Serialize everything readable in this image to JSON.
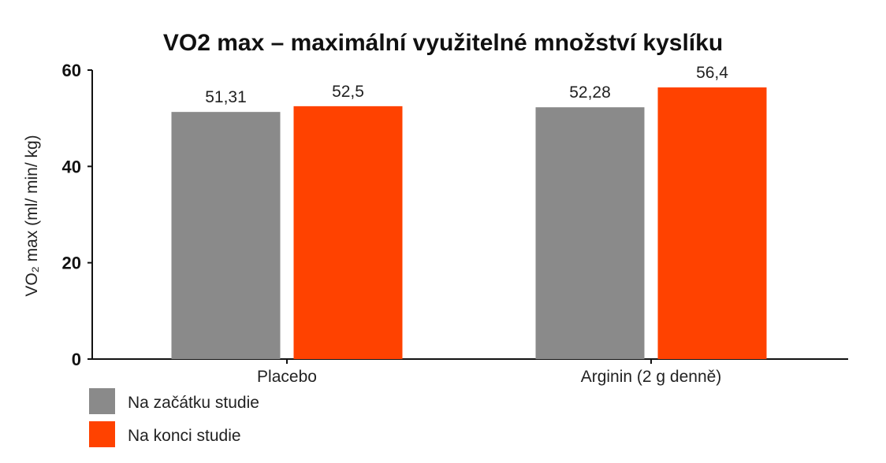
{
  "chart_data": {
    "type": "bar",
    "title": "VO2 max – maximální využitelné množství kyslíku",
    "ylabel": "VO₂ max (ml/ min/ kg)",
    "xlabel": "",
    "ylim": [
      0,
      60
    ],
    "yticks": [
      0,
      20,
      40,
      60
    ],
    "categories": [
      "Placebo",
      "Arginin (2 g denně)"
    ],
    "series": [
      {
        "name": "Na začátku studie",
        "color": "#8a8a8a",
        "values": [
          51.31,
          52.28
        ],
        "labels": [
          "51,31",
          "52,28"
        ]
      },
      {
        "name": "Na konci studie",
        "color": "#ff4200",
        "values": [
          52.5,
          56.4
        ],
        "labels": [
          "52,5",
          "56,4"
        ]
      }
    ],
    "legend_position": "bottom-left",
    "grid": false
  }
}
